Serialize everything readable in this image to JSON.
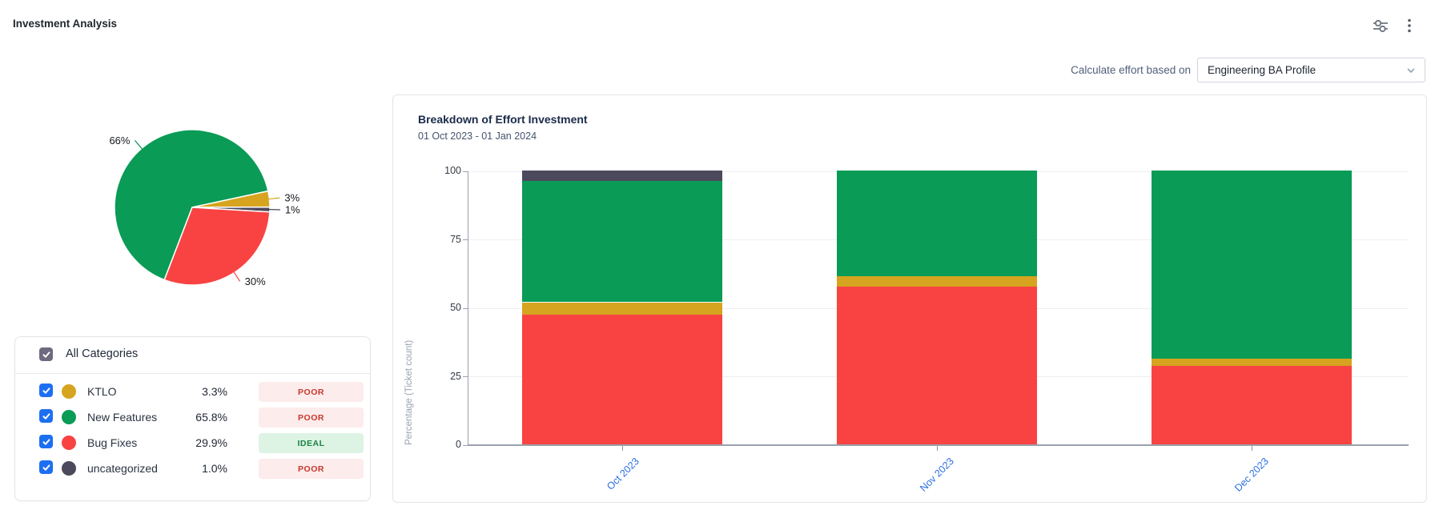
{
  "header": {
    "title": "Investment Analysis",
    "icons": [
      "sliders-icon",
      "kebab-menu-icon"
    ]
  },
  "controls": {
    "label": "Calculate effort based on",
    "profile_dropdown_value": "Engineering BA Profile"
  },
  "categories_panel": {
    "all_label": "All Categories",
    "all_checked": true,
    "rows": [
      {
        "name": "KTLO",
        "pct": "3.3%",
        "status": "POOR",
        "status_type": "poor",
        "color": "#d6a41e",
        "checked": true
      },
      {
        "name": "New Features",
        "pct": "65.8%",
        "status": "POOR",
        "status_type": "poor",
        "color": "#0a9b56",
        "checked": true
      },
      {
        "name": "Bug Fixes",
        "pct": "29.9%",
        "status": "IDEAL",
        "status_type": "ideal",
        "color": "#f94343",
        "checked": true
      },
      {
        "name": "uncategorized",
        "pct": "1.0%",
        "status": "POOR",
        "status_type": "poor",
        "color": "#4d495c",
        "checked": true
      }
    ]
  },
  "chart_data": [
    {
      "type": "pie",
      "start_angle_deg": 201,
      "slices": [
        {
          "name": "New Features",
          "value": 65.8,
          "label": "66%",
          "color": "#0a9b56"
        },
        {
          "name": "KTLO",
          "value": 3.3,
          "label": "3%",
          "color": "#d6a41e"
        },
        {
          "name": "uncategorized",
          "value": 1.0,
          "label": "1%",
          "color": "#4d495c"
        },
        {
          "name": "Bug Fixes",
          "value": 29.9,
          "label": "30%",
          "color": "#f94343"
        }
      ]
    },
    {
      "type": "bar",
      "stacked": true,
      "title": "Breakdown of Effort Investment",
      "subtitle": "01 Oct 2023 - 01 Jan 2024",
      "ylabel": "Percentage (Ticket count)",
      "ylim": [
        0,
        100
      ],
      "yticks": [
        0,
        25,
        50,
        75,
        100
      ],
      "grid": true,
      "legend": "none",
      "categories": [
        "Oct 2023",
        "Nov 2023",
        "Dec 2023"
      ],
      "series": [
        {
          "name": "Bug Fixes",
          "color": "#f94343",
          "values": [
            47.4,
            57.7,
            28.6
          ]
        },
        {
          "name": "KTLO",
          "color": "#d6a41e",
          "values": [
            4.5,
            3.6,
            2.6
          ]
        },
        {
          "name": "New Features",
          "color": "#0a9b56",
          "values": [
            44.2,
            38.7,
            68.8
          ]
        },
        {
          "name": "uncategorized",
          "color": "#4d495c",
          "values": [
            3.9,
            0,
            0
          ]
        }
      ]
    }
  ],
  "colors": {
    "checkbox_blue": "#1d6ff2",
    "checkbox_all_slate": "#6f6a80",
    "poor_badge_bg": "#fceceb",
    "poor_badge_text": "#c8372d",
    "ideal_badge_bg": "#ddf3e3",
    "ideal_badge_text": "#1a8245",
    "xaxis_link_blue": "#2a6fe0"
  }
}
